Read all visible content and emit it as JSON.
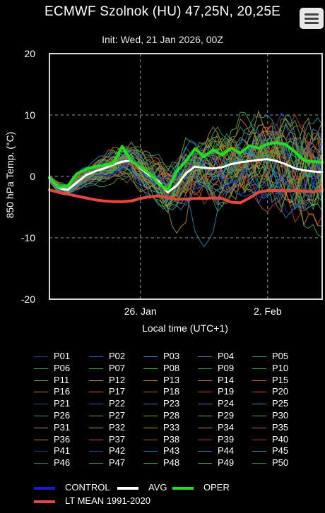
{
  "title": "ECMWF Szolnok (HU) 47,25N, 20,25E",
  "subtitle": "Init: Wed, 21 Jan 2026, 00Z",
  "menu_icon": "hamburger-menu-icon",
  "chart_data": {
    "type": "line",
    "ylabel": "850 hPa Temp. (°C)",
    "xlabel": "Local time (UTC+1)",
    "ylim": [
      -20,
      20
    ],
    "yticks": [
      -20,
      -10,
      0,
      10,
      20
    ],
    "xlim_days": [
      0,
      15
    ],
    "xticks": [
      {
        "label": "26. Jan",
        "day": 5
      },
      {
        "label": "2. Feb",
        "day": 12
      }
    ],
    "grid": true,
    "legend_position": "bottom",
    "series": [
      {
        "name": "OPER",
        "color": "#22dd22",
        "x": [
          0,
          0.5,
          1,
          1.5,
          2,
          2.5,
          3,
          3.5,
          4,
          4.5,
          5,
          5.5,
          6,
          6.5,
          7,
          7.5,
          8,
          8.5,
          9,
          9.5,
          10,
          10.5,
          11,
          11.5,
          12,
          12.5,
          13,
          13.5,
          14,
          14.5,
          15
        ],
        "y": [
          -0.2,
          -1.8,
          -1.6,
          0.4,
          1.2,
          1.6,
          1.8,
          2.1,
          4.9,
          2.5,
          1.5,
          0.5,
          -1.2,
          -2.2,
          0.8,
          2.5,
          4.5,
          3.2,
          4.3,
          3.5,
          4.6,
          3.8,
          5.0,
          4.6,
          5.3,
          5.5,
          5.2,
          4.0,
          2.6,
          2.4,
          2.3
        ]
      },
      {
        "name": "AVG",
        "color": "#ffffff",
        "x": [
          0,
          0.5,
          1,
          1.5,
          2,
          2.5,
          3,
          3.5,
          4,
          4.5,
          5,
          5.5,
          6,
          6.5,
          7,
          7.5,
          8,
          8.5,
          9,
          9.5,
          10,
          10.5,
          11,
          11.5,
          12,
          12.5,
          13,
          13.5,
          14,
          14.5,
          15
        ],
        "y": [
          -0.3,
          -1.9,
          -2.2,
          -1.0,
          0.2,
          0.8,
          1.3,
          1.9,
          2.4,
          2.6,
          1.3,
          0.2,
          -0.8,
          -2.6,
          -1.5,
          0.5,
          1.6,
          1.4,
          1.3,
          1.5,
          2.0,
          2.3,
          2.5,
          2.7,
          2.8,
          2.5,
          2.0,
          1.3,
          1.0,
          0.8,
          0.7
        ]
      },
      {
        "name": "LT MEAN 1991-2020",
        "color": "#e8463c",
        "x": [
          0,
          0.5,
          1,
          1.5,
          2,
          2.5,
          3,
          3.5,
          4,
          4.5,
          5,
          5.5,
          6,
          6.5,
          7,
          7.5,
          8,
          8.5,
          9,
          9.5,
          10,
          10.5,
          11,
          11.5,
          12,
          12.5,
          13,
          13.5,
          14,
          14.5,
          15
        ],
        "y": [
          -2.2,
          -2.6,
          -2.9,
          -3.2,
          -3.5,
          -3.8,
          -4.0,
          -4.1,
          -4.1,
          -4.0,
          -3.6,
          -3.3,
          -3.2,
          -3.5,
          -3.7,
          -3.7,
          -3.6,
          -3.6,
          -3.5,
          -3.6,
          -4.2,
          -4.3,
          -3.5,
          -2.6,
          -2.3,
          -2.3,
          -2.4,
          -2.3,
          -2.4,
          -2.5,
          -2.2
        ]
      }
    ],
    "members": {
      "names": [
        "P01",
        "P02",
        "P03",
        "P04",
        "P05",
        "P06",
        "P07",
        "P08",
        "P09",
        "P10",
        "P11",
        "P12",
        "P13",
        "P14",
        "P15",
        "P16",
        "P17",
        "P18",
        "P19",
        "P20",
        "P21",
        "P22",
        "P23",
        "P24",
        "P25",
        "P26",
        "P27",
        "P28",
        "P29",
        "P30",
        "P31",
        "P32",
        "P33",
        "P34",
        "P35",
        "P36",
        "P37",
        "P38",
        "P39",
        "P40",
        "P41",
        "P42",
        "P43",
        "P44",
        "P45",
        "P46",
        "P47",
        "P48",
        "P49",
        "P50"
      ],
      "colors": [
        "#1f3fa0",
        "#2b5fc8",
        "#3b7bd8",
        "#2e86b0",
        "#2a9a9a",
        "#2aa06a",
        "#34a848",
        "#4ab03a",
        "#2f9a4e",
        "#3aa63a",
        "#a09a30",
        "#c09a30",
        "#b88a2e",
        "#c07a2e",
        "#c86a2e",
        "#c07a30",
        "#c8602a",
        "#b8502a",
        "#c04028",
        "#c8402c",
        "#1f3f90",
        "#2b4fb8",
        "#2e6fc0",
        "#2e86b0",
        "#2a9aa0",
        "#2aa070",
        "#40a850",
        "#56b040",
        "#48b04a",
        "#40a840",
        "#a0a030",
        "#b89a30",
        "#c0902e",
        "#c8782e",
        "#c0682c",
        "#b88a30",
        "#c0602a",
        "#b8502a",
        "#b84028",
        "#c03a2c",
        "#203a90",
        "#2a50b0",
        "#2c70c0",
        "#3088b0",
        "#2a9aa0",
        "#2a9a6a",
        "#3aa850",
        "#4ab040",
        "#50b050",
        "#3aa03a"
      ]
    },
    "control": {
      "name": "CONTROL",
      "color": "#1a1acc"
    }
  }
}
